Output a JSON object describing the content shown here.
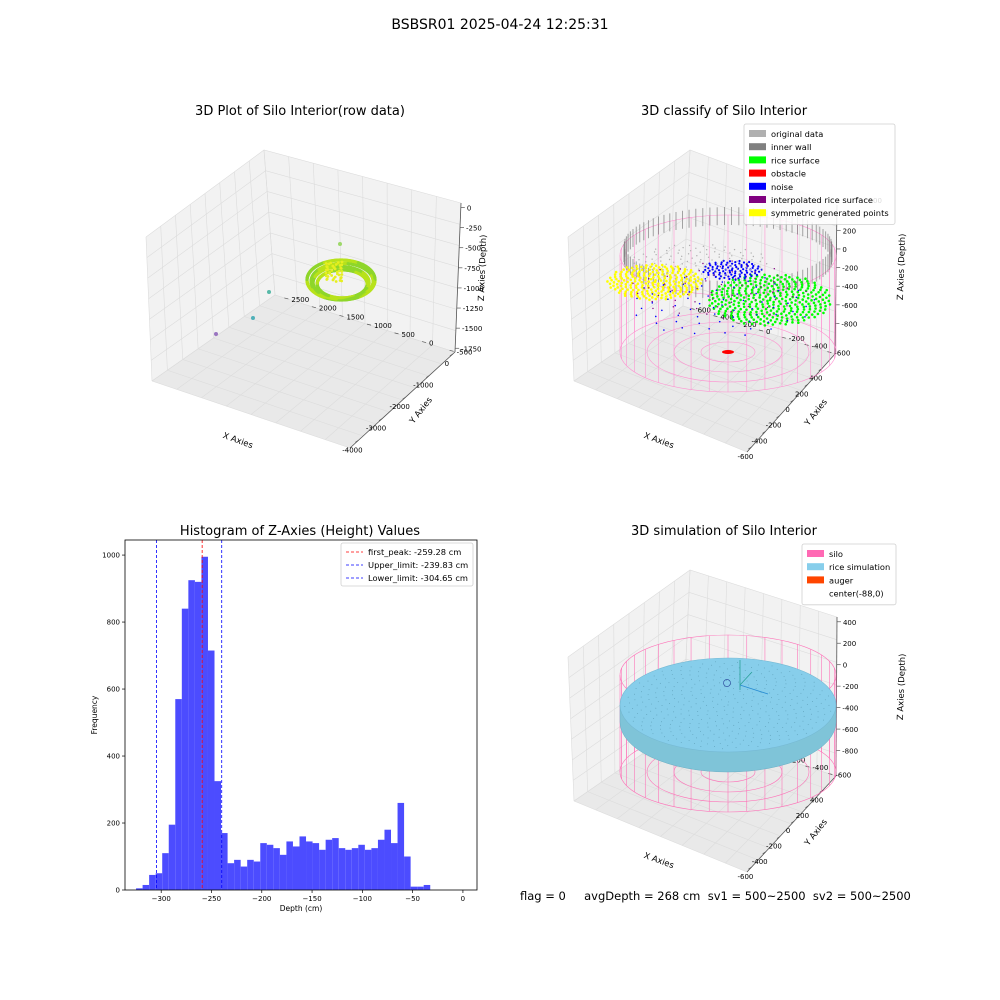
{
  "suptitle": "BSBSR01 2025-04-24 12:25:31",
  "footer": "flag = 0     avgDepth = 268 cm  sv1 = 500~2500  sv2 = 500~2500",
  "chart_data": [
    {
      "type": "scatter",
      "title": "3D Plot of Silo Interior(row data)",
      "xlabel": "X Axies",
      "ylabel": "Y Axies",
      "zlabel": "Z Axies (Depth)",
      "x_ticks": [
        "-4000",
        "-3000",
        "-2000",
        "-1000",
        "0"
      ],
      "y_ticks": [
        "-500",
        "0",
        "500",
        "1000",
        "1500",
        "2000",
        "2500"
      ],
      "z_ticks": [
        "0",
        "-250",
        "-500",
        "-750",
        "-1000",
        "-1250",
        "-1500",
        "-1750"
      ]
    },
    {
      "type": "scatter",
      "title": "3D classify of Silo Interior",
      "xlabel": "X Axies",
      "ylabel": "Y Axies",
      "zlabel": "Z Axies (Depth)",
      "x_ticks": [
        "-600",
        "-400",
        "-200",
        "0",
        "200",
        "400"
      ],
      "y_ticks": [
        "-600",
        "-400",
        "-200",
        "0",
        "200",
        "400",
        "600"
      ],
      "z_ticks": [
        "200",
        "0",
        "-200",
        "-400",
        "-600",
        "-800"
      ],
      "z_top_tick": "00",
      "legend": [
        {
          "label": "original data",
          "color": "#b0b0b0"
        },
        {
          "label": "inner wall",
          "color": "#808080"
        },
        {
          "label": "rice surface",
          "color": "#00ff00"
        },
        {
          "label": "obstacle",
          "color": "#ff0000"
        },
        {
          "label": "noise",
          "color": "#0000ff"
        },
        {
          "label": "interpolated rice surface",
          "color": "#800080"
        },
        {
          "label": "symmetric generated points",
          "color": "#ffff00"
        }
      ],
      "legend_loc": "upper right"
    },
    {
      "type": "bar",
      "title": "Histogram of Z-Axies (Height) Values",
      "xlabel": "Depth (cm)",
      "ylabel": "Frequency",
      "bin_start": -325,
      "bin_width": 6.5,
      "values": [
        5,
        15,
        45,
        50,
        110,
        195,
        570,
        840,
        925,
        920,
        995,
        715,
        325,
        170,
        80,
        90,
        70,
        90,
        85,
        140,
        135,
        125,
        105,
        145,
        130,
        160,
        145,
        140,
        120,
        150,
        155,
        125,
        120,
        125,
        135,
        120,
        125,
        150,
        180,
        140,
        260,
        100,
        10,
        10,
        15
      ],
      "x_ticks": [
        -300,
        -250,
        -200,
        -150,
        -100,
        -50,
        0
      ],
      "y_ticks": [
        0,
        200,
        400,
        600,
        800,
        1000
      ],
      "xlim": [
        -336,
        14
      ],
      "ylim": [
        0,
        1045
      ],
      "bar_color": "#4c4cff",
      "lines": [
        {
          "label": "first_peak: -259.28 cm",
          "x": -259.28,
          "color": "#ff0000"
        },
        {
          "label": "Upper_limit: -239.83 cm",
          "x": -239.83,
          "color": "#0000ff"
        },
        {
          "label": "Lower_limit: -304.65 cm",
          "x": -304.65,
          "color": "#0000ff"
        }
      ],
      "legend_loc": "upper right"
    },
    {
      "type": "scatter",
      "title": "3D simulation of Silo Interior",
      "xlabel": "X Axies",
      "ylabel": "Y Axies",
      "zlabel": "Z Axies (Depth)",
      "x_ticks": [
        "-600",
        "-400",
        "-200",
        "0",
        "200",
        "400"
      ],
      "y_ticks": [
        "-600",
        "-400",
        "-200",
        "0",
        "200",
        "400",
        "600"
      ],
      "z_ticks": [
        "400",
        "200",
        "0",
        "-200",
        "-400",
        "-600",
        "-800"
      ],
      "legend": [
        {
          "label": "silo",
          "color": "#ff69b4"
        },
        {
          "label": "rice simulation",
          "color": "#87ceeb"
        },
        {
          "label": "auger",
          "color": "#ff4500"
        },
        {
          "label": "center(-88,0)",
          "color": "#ffffff"
        }
      ],
      "legend_loc": "upper right"
    }
  ]
}
